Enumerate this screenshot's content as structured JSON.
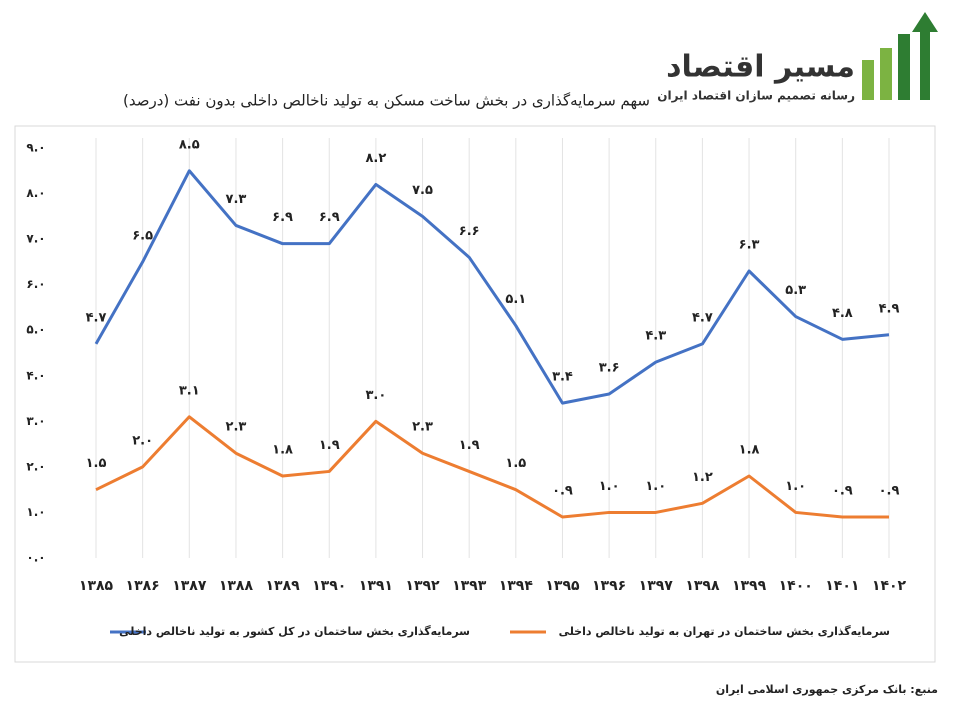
{
  "chart_data": {
    "type": "line",
    "title": "سهم سرمایه‌گذاری در بخش ساخت مسکن به تولید ناخالص داخلی بدون نفت (درصد)",
    "categories": [
      "۱۳۸۵",
      "۱۳۸۶",
      "۱۳۸۷",
      "۱۳۸۸",
      "۱۳۸۹",
      "۱۳۹۰",
      "۱۳۹۱",
      "۱۳۹۲",
      "۱۳۹۳",
      "۱۳۹۴",
      "۱۳۹۵",
      "۱۳۹۶",
      "۱۳۹۷",
      "۱۳۹۸",
      "۱۳۹۹",
      "۱۴۰۰",
      "۱۴۰۱",
      "۱۴۰۲"
    ],
    "series": [
      {
        "name": "سرمایه‌گذاری بخش ساختمان در کل کشور به تولید ناخالص داخلی",
        "color": "#4472c4",
        "values": [
          4.7,
          6.5,
          8.5,
          7.3,
          6.9,
          6.9,
          8.2,
          7.5,
          6.6,
          5.1,
          3.4,
          3.6,
          4.3,
          4.7,
          6.3,
          5.3,
          4.8,
          4.9
        ],
        "value_labels": [
          "۴.۷",
          "۶.۵",
          "۸.۵",
          "۷.۳",
          "۶.۹",
          "۶.۹",
          "۸.۲",
          "۷.۵",
          "۶.۶",
          "۵.۱",
          "۳.۴",
          "۳.۶",
          "۴.۳",
          "۴.۷",
          "۶.۳",
          "۵.۳",
          "۴.۸",
          "۴.۹"
        ]
      },
      {
        "name": "سرمایه‌گذاری بخش ساختمان در تهران به تولید ناخالص داخلی",
        "color": "#ed7d31",
        "values": [
          1.5,
          2.0,
          3.1,
          2.3,
          1.8,
          1.9,
          3.0,
          2.3,
          1.9,
          1.5,
          0.9,
          1.0,
          1.0,
          1.2,
          1.8,
          1.0,
          0.9,
          0.9
        ],
        "value_labels": [
          "۱.۵",
          "۲.۰",
          "۳.۱",
          "۲.۳",
          "۱.۸",
          "۱.۹",
          "۳.۰",
          "۲.۳",
          "۱.۹",
          "۱.۵",
          "۰.۹",
          "۱.۰",
          "۱.۰",
          "۱.۲",
          "۱.۸",
          "۱.۰",
          "۰.۹",
          "۰.۹"
        ]
      }
    ],
    "ylim": [
      0,
      9
    ],
    "yticks": [
      {
        "value": 0,
        "label": "۰.۰"
      },
      {
        "value": 1,
        "label": "۱.۰"
      },
      {
        "value": 2,
        "label": "۲.۰"
      },
      {
        "value": 3,
        "label": "۳.۰"
      },
      {
        "value": 4,
        "label": "۴.۰"
      },
      {
        "value": 5,
        "label": "۵.۰"
      },
      {
        "value": 6,
        "label": "۶.۰"
      },
      {
        "value": 7,
        "label": "۷.۰"
      },
      {
        "value": 8,
        "label": "۸.۰"
      },
      {
        "value": 9,
        "label": "۹.۰"
      }
    ],
    "legend": "bottom"
  },
  "logo": {
    "name": "مسیر اقتصاد",
    "tagline": "رسانه تصمیم سازان اقتصاد ایران"
  },
  "source": "منبع: بانک مرکزی جمهوری اسلامی ایران"
}
